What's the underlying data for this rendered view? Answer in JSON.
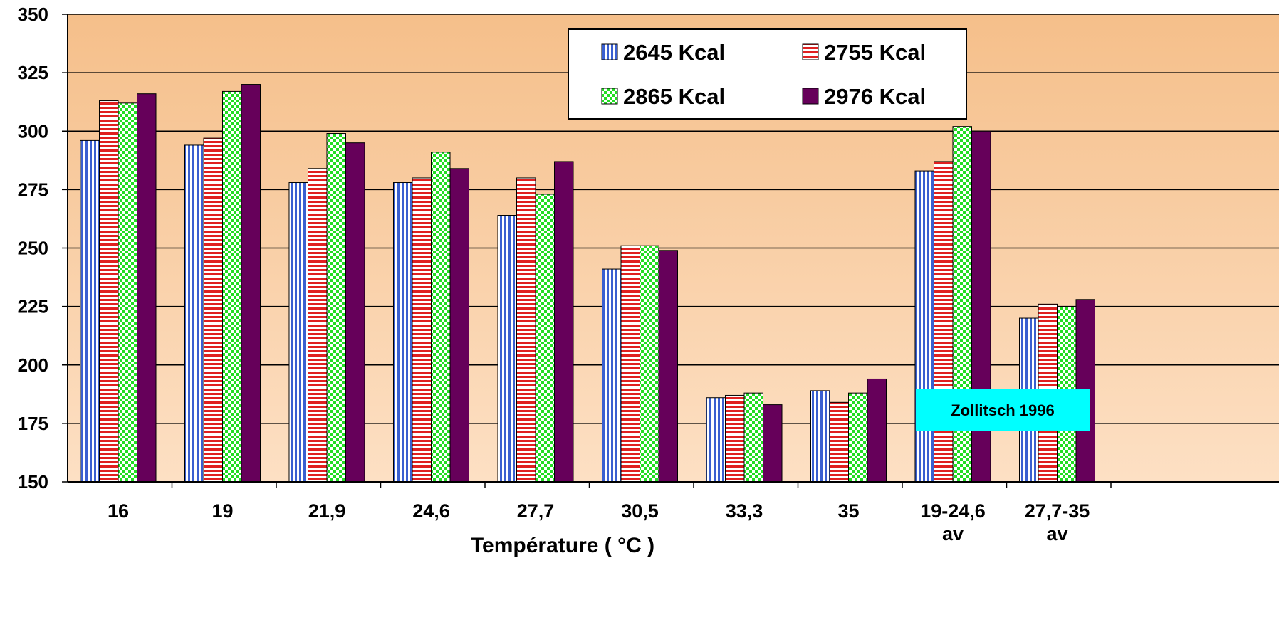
{
  "chart_data": {
    "type": "bar",
    "xlabel": "Température ( °C )",
    "ylabel": "",
    "ylim": [
      150,
      350
    ],
    "yticks": [
      150,
      175,
      200,
      225,
      250,
      275,
      300,
      325,
      350
    ],
    "grid": true,
    "legend_position": "top-right",
    "categories": [
      [
        "16"
      ],
      [
        "19"
      ],
      [
        "21,9"
      ],
      [
        "24,6"
      ],
      [
        "27,7"
      ],
      [
        "30,5"
      ],
      [
        "33,3"
      ],
      [
        "35"
      ],
      [
        "19-24,6",
        "av"
      ],
      [
        "27,7-35",
        "av"
      ]
    ],
    "series": [
      {
        "name": "2645 Kcal",
        "pattern": "vertical-stripes",
        "color": "#3a5fd0",
        "values": [
          296,
          294,
          278,
          278,
          264,
          241,
          186,
          189,
          283,
          220
        ]
      },
      {
        "name": "2755 Kcal",
        "pattern": "horizontal-stripes",
        "color": "#e02020",
        "values": [
          313,
          297,
          284,
          280,
          280,
          251,
          187,
          184,
          287,
          226
        ]
      },
      {
        "name": "2865 Kcal",
        "pattern": "checker",
        "color": "#22dd22",
        "values": [
          312,
          317,
          299,
          291,
          273,
          251,
          188,
          188,
          302,
          225
        ]
      },
      {
        "name": "2976 Kcal",
        "pattern": "solid",
        "color": "#66005a",
        "values": [
          316,
          320,
          295,
          284,
          287,
          249,
          183,
          194,
          300,
          228
        ]
      }
    ],
    "annotation": {
      "text": "Zollitsch 1996",
      "background": "#00ffff"
    },
    "plot_background_top": "#f5bf8a",
    "plot_background_bottom": "#fde0c4"
  }
}
